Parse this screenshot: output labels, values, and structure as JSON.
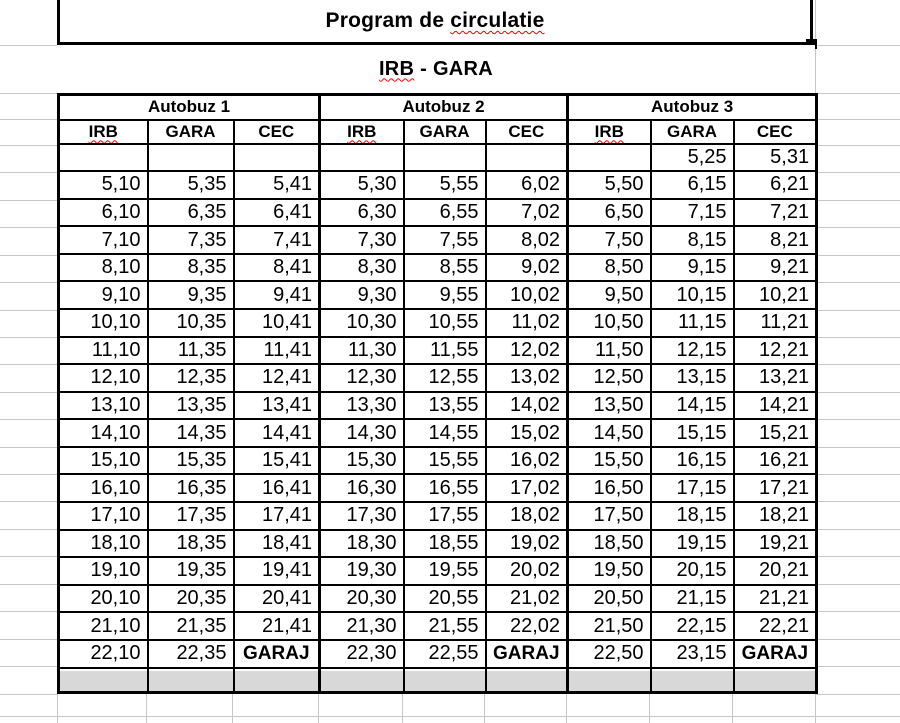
{
  "title": {
    "pre": "Program de ",
    "misspelled": "circulatie"
  },
  "subtitle": {
    "misspelled": "IRB",
    "rest": " - GARA"
  },
  "table": {
    "groups": [
      "Autobuz 1",
      "Autobuz 2",
      "Autobuz 3"
    ],
    "columns": [
      "IRB",
      "GARA",
      "CEC"
    ],
    "misspelled_header": "IRB",
    "rows": [
      [
        "",
        "",
        "",
        "",
        "",
        "",
        "",
        "5,25",
        "5,31"
      ],
      [
        "5,10",
        "5,35",
        "5,41",
        "5,30",
        "5,55",
        "6,02",
        "5,50",
        "6,15",
        "6,21"
      ],
      [
        "6,10",
        "6,35",
        "6,41",
        "6,30",
        "6,55",
        "7,02",
        "6,50",
        "7,15",
        "7,21"
      ],
      [
        "7,10",
        "7,35",
        "7,41",
        "7,30",
        "7,55",
        "8,02",
        "7,50",
        "8,15",
        "8,21"
      ],
      [
        "8,10",
        "8,35",
        "8,41",
        "8,30",
        "8,55",
        "9,02",
        "8,50",
        "9,15",
        "9,21"
      ],
      [
        "9,10",
        "9,35",
        "9,41",
        "9,30",
        "9,55",
        "10,02",
        "9,50",
        "10,15",
        "10,21"
      ],
      [
        "10,10",
        "10,35",
        "10,41",
        "10,30",
        "10,55",
        "11,02",
        "10,50",
        "11,15",
        "11,21"
      ],
      [
        "11,10",
        "11,35",
        "11,41",
        "11,30",
        "11,55",
        "12,02",
        "11,50",
        "12,15",
        "12,21"
      ],
      [
        "12,10",
        "12,35",
        "12,41",
        "12,30",
        "12,55",
        "13,02",
        "12,50",
        "13,15",
        "13,21"
      ],
      [
        "13,10",
        "13,35",
        "13,41",
        "13,30",
        "13,55",
        "14,02",
        "13,50",
        "14,15",
        "14,21"
      ],
      [
        "14,10",
        "14,35",
        "14,41",
        "14,30",
        "14,55",
        "15,02",
        "14,50",
        "15,15",
        "15,21"
      ],
      [
        "15,10",
        "15,35",
        "15,41",
        "15,30",
        "15,55",
        "16,02",
        "15,50",
        "16,15",
        "16,21"
      ],
      [
        "16,10",
        "16,35",
        "16,41",
        "16,30",
        "16,55",
        "17,02",
        "16,50",
        "17,15",
        "17,21"
      ],
      [
        "17,10",
        "17,35",
        "17,41",
        "17,30",
        "17,55",
        "18,02",
        "17,50",
        "18,15",
        "18,21"
      ],
      [
        "18,10",
        "18,35",
        "18,41",
        "18,30",
        "18,55",
        "19,02",
        "18,50",
        "19,15",
        "19,21"
      ],
      [
        "19,10",
        "19,35",
        "19,41",
        "19,30",
        "19,55",
        "20,02",
        "19,50",
        "20,15",
        "20,21"
      ],
      [
        "20,10",
        "20,35",
        "20,41",
        "20,30",
        "20,55",
        "21,02",
        "20,50",
        "21,15",
        "21,21"
      ],
      [
        "21,10",
        "21,35",
        "21,41",
        "21,30",
        "21,55",
        "22,02",
        "21,50",
        "22,15",
        "22,21"
      ],
      [
        "22,10",
        "22,35",
        "GARAJ",
        "22,30",
        "22,55",
        "GARAJ",
        "22,50",
        "23,15",
        "GARAJ"
      ]
    ]
  },
  "colors": {
    "border": "#000000",
    "gridline": "#c6c6c6",
    "gray_fill": "#d8d8d8",
    "squiggle": "#ff0000"
  }
}
